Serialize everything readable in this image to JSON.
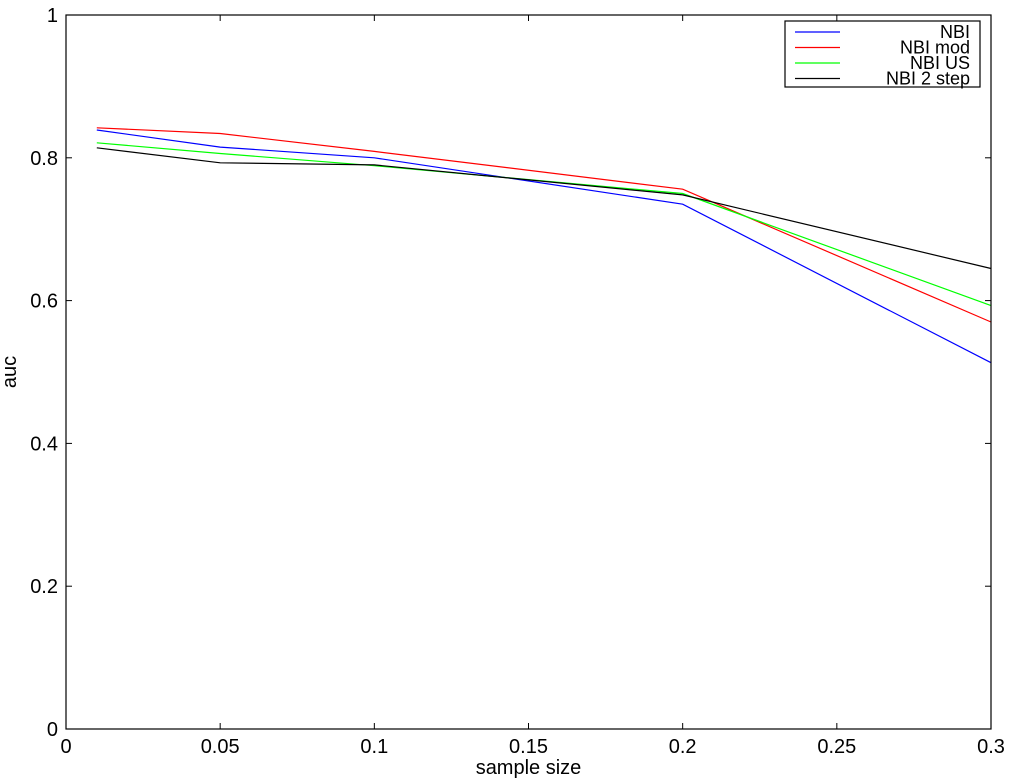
{
  "chart_data": {
    "type": "line",
    "title": "",
    "xlabel": "sample size",
    "ylabel": "auc",
    "xlim": [
      0,
      0.3
    ],
    "ylim": [
      0,
      1
    ],
    "xticks": [
      0,
      0.05,
      0.1,
      0.15,
      0.2,
      0.25,
      0.3
    ],
    "xtick_labels": [
      "0",
      "0.05",
      "0.1",
      "0.15",
      "0.2",
      "0.25",
      "0.3"
    ],
    "yticks": [
      0,
      0.2,
      0.4,
      0.6,
      0.8,
      1
    ],
    "ytick_labels": [
      "0",
      "0.2",
      "0.4",
      "0.6",
      "0.8",
      "1"
    ],
    "grid": false,
    "legend_position": "top-right",
    "x": [
      0.01,
      0.05,
      0.1,
      0.2,
      0.3
    ],
    "series": [
      {
        "name": "NBI",
        "color": "#0000ff",
        "values": [
          0.839,
          0.815,
          0.8,
          0.735,
          0.513
        ]
      },
      {
        "name": "NBI mod",
        "color": "#ff0000",
        "values": [
          0.842,
          0.834,
          0.809,
          0.756,
          0.57
        ]
      },
      {
        "name": "NBI US",
        "color": "#00ff00",
        "values": [
          0.821,
          0.806,
          0.789,
          0.75,
          0.593
        ]
      },
      {
        "name": "NBI 2 step",
        "color": "#000000",
        "values": [
          0.814,
          0.793,
          0.79,
          0.748,
          0.645
        ]
      }
    ]
  }
}
